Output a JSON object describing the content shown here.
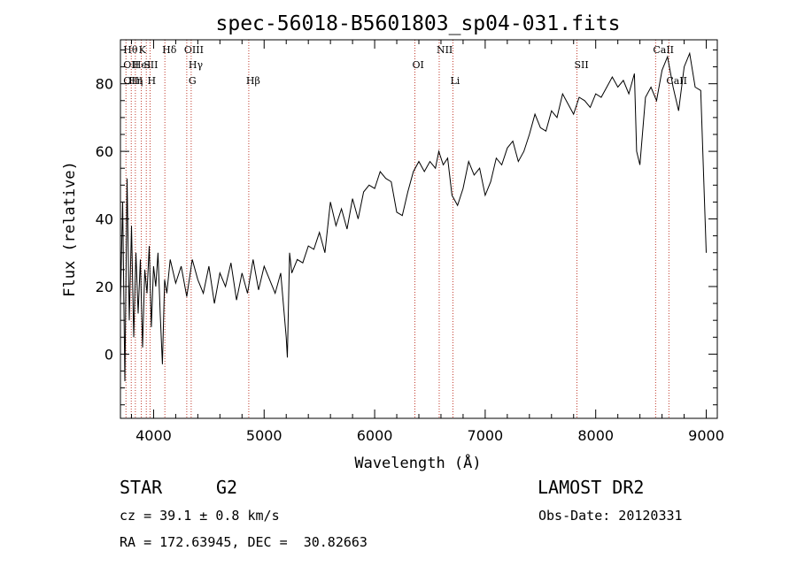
{
  "chart_data": {
    "type": "line",
    "title": "spec-56018-B5601803_sp04-031.fits",
    "xlabel": "Wavelength (Å)",
    "ylabel": "Flux (relative)",
    "xlim": [
      3700,
      9100
    ],
    "ylim": [
      -19,
      93
    ],
    "x_ticks": [
      4000,
      5000,
      6000,
      7000,
      8000,
      9000
    ],
    "y_ticks": [
      0,
      20,
      40,
      60,
      80
    ],
    "grid": false,
    "series": [
      {
        "x": [
          3700,
          3720,
          3740,
          3760,
          3780,
          3800,
          3820,
          3840,
          3860,
          3880,
          3900,
          3920,
          3940,
          3960,
          3980,
          4000,
          4020,
          4040,
          4060,
          4080,
          4100,
          4120,
          4150,
          4200,
          4250,
          4300,
          4350,
          4400,
          4450,
          4500,
          4550,
          4600,
          4650,
          4700,
          4750,
          4800,
          4850,
          4900,
          4950,
          5000,
          5050,
          5100,
          5150,
          5200,
          5210,
          5230,
          5250,
          5300,
          5350,
          5400,
          5450,
          5500,
          5550,
          5600,
          5650,
          5700,
          5750,
          5800,
          5850,
          5900,
          5950,
          6000,
          6050,
          6100,
          6150,
          6200,
          6250,
          6300,
          6350,
          6400,
          6450,
          6500,
          6550,
          6580,
          6620,
          6660,
          6700,
          6750,
          6800,
          6850,
          6900,
          6950,
          7000,
          7050,
          7100,
          7150,
          7200,
          7250,
          7300,
          7350,
          7400,
          7450,
          7500,
          7550,
          7600,
          7650,
          7700,
          7750,
          7800,
          7850,
          7900,
          7950,
          8000,
          8050,
          8100,
          8150,
          8200,
          8250,
          8300,
          8350,
          8370,
          8400,
          8450,
          8500,
          8550,
          8600,
          8650,
          8700,
          8750,
          8800,
          8850,
          8900,
          8950,
          9000
        ],
        "values": [
          15,
          45,
          -8,
          52,
          10,
          38,
          5,
          30,
          12,
          28,
          2,
          25,
          18,
          32,
          8,
          26,
          20,
          30,
          12,
          -3,
          22,
          18,
          28,
          21,
          26,
          17,
          28,
          22,
          18,
          26,
          15,
          24,
          20,
          27,
          16,
          24,
          18,
          28,
          19,
          26,
          22,
          18,
          24,
          5,
          -1,
          30,
          24,
          28,
          27,
          32,
          31,
          36,
          30,
          45,
          38,
          43,
          37,
          46,
          40,
          48,
          50,
          49,
          54,
          52,
          51,
          42,
          41,
          48,
          54,
          57,
          54,
          57,
          55,
          60,
          56,
          58,
          47,
          44,
          49,
          57,
          53,
          55,
          47,
          51,
          58,
          56,
          61,
          63,
          57,
          60,
          65,
          71,
          67,
          66,
          72,
          70,
          77,
          74,
          71,
          76,
          75,
          73,
          77,
          76,
          79,
          82,
          79,
          81,
          77,
          83,
          60,
          56,
          76,
          79,
          75,
          84,
          88,
          79,
          72,
          85,
          89,
          79,
          78,
          30
        ]
      }
    ],
    "line_markers": [
      {
        "x": 3750,
        "label": "Hθ",
        "row": 1
      },
      {
        "x": 3750,
        "label": "OII",
        "row": 2
      },
      {
        "x": 3750,
        "label": "OIII",
        "row": 3
      },
      {
        "x": 3798,
        "label": "Hη",
        "row": 3
      },
      {
        "x": 3835,
        "label": "HeI",
        "row": 2
      },
      {
        "x": 3889,
        "label": "K",
        "row": 1
      },
      {
        "x": 3934,
        "label": "SII",
        "row": 2
      },
      {
        "x": 3968,
        "label": "H",
        "row": 3
      },
      {
        "x": 4102,
        "label": "Hδ",
        "row": 1
      },
      {
        "x": 4300,
        "label": "OIII",
        "row": 1
      },
      {
        "x": 4340,
        "label": "Hγ",
        "row": 2
      },
      {
        "x": 4340,
        "label": "G",
        "row": 3
      },
      {
        "x": 4861,
        "label": "Hβ",
        "row": 3
      },
      {
        "x": 6364,
        "label": "OI",
        "row": 2
      },
      {
        "x": 6584,
        "label": "NII",
        "row": 1
      },
      {
        "x": 6708,
        "label": "Li",
        "row": 3
      },
      {
        "x": 7830,
        "label": "SII",
        "row": 2
      },
      {
        "x": 8542,
        "label": "CaII",
        "row": 1
      },
      {
        "x": 8662,
        "label": "CaII",
        "row": 3
      }
    ]
  },
  "info": {
    "object_class": "STAR",
    "subclass": "G2",
    "cz": "cz = 39.1 ± 0.8 km/s",
    "coords": "RA = 172.63945, DEC =  30.82663",
    "survey": "LAMOST DR2",
    "obs_date": "Obs-Date: 20120331"
  },
  "colors": {
    "spectrum": "#000000",
    "line_markers": "#c0392b",
    "axes": "#000000"
  }
}
